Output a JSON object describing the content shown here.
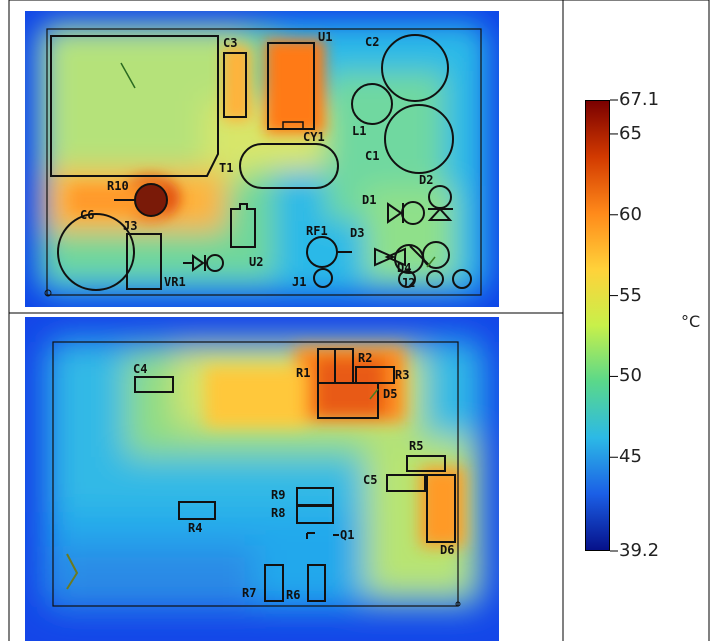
{
  "colorbar": {
    "max_label": "67.1",
    "min_label": "39.2",
    "ticks": [
      {
        "value": 65,
        "label": "65"
      },
      {
        "value": 60,
        "label": "60"
      },
      {
        "value": 55,
        "label": "55"
      },
      {
        "value": 50,
        "label": "50"
      },
      {
        "value": 45,
        "label": "45"
      }
    ],
    "unit": "°C",
    "colors": [
      "#7a0000",
      "#d23a00",
      "#ff8a1a",
      "#ffd23a",
      "#c8f04a",
      "#5ad88a",
      "#2cb9e6",
      "#1b5fe6",
      "#06118a"
    ]
  },
  "top_board": {
    "labels": {
      "c3": "C3",
      "u1": "U1",
      "c2": "C2",
      "l1": "L1",
      "c1": "C1",
      "t1": "T1",
      "cy1": "CY1",
      "r10": "R10",
      "c6": "C6",
      "j3": "J3",
      "u2": "U2",
      "vr1": "VR1",
      "rf1": "RF1",
      "d1": "D1",
      "d2": "D2",
      "d3": "D3",
      "d4": "D4",
      "j1": "J1",
      "j2": "J2"
    }
  },
  "bottom_board": {
    "labels": {
      "c4": "C4",
      "r1": "R1",
      "r2": "R2",
      "r3": "R3",
      "d5": "D5",
      "r5": "R5",
      "c5": "C5",
      "r9": "R9",
      "r8": "R8",
      "q1": "Q1",
      "r4": "R4",
      "d6": "D6",
      "r7": "R7",
      "r6": "R6"
    }
  }
}
